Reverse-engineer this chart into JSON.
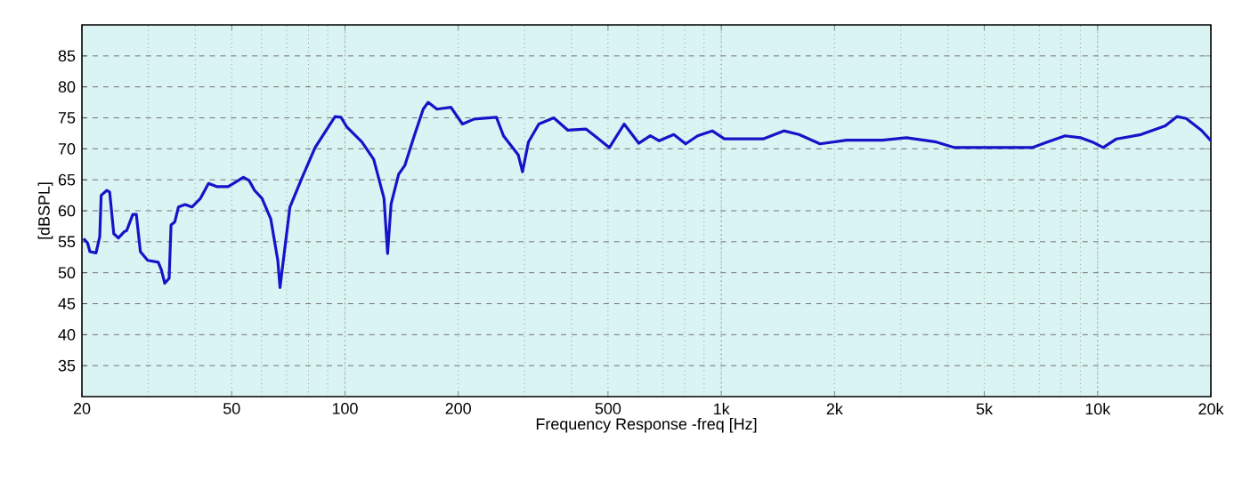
{
  "chart_data": {
    "type": "line",
    "xlabel": "Frequency Response -freq [Hz]",
    "ylabel": "[dBSPL]",
    "log": "x",
    "grid": true,
    "marker": "none",
    "line_style": "solid",
    "xlim": [
      20,
      20000
    ],
    "ylim": [
      30,
      90
    ],
    "xticks": [
      20,
      50,
      100,
      200,
      500,
      {
        "value": 1000,
        "label": "1k"
      },
      {
        "value": 2000,
        "label": "2k"
      },
      {
        "value": 5000,
        "label": "5k"
      },
      {
        "value": 10000,
        "label": "10k"
      },
      {
        "value": 20000,
        "label": "20k"
      }
    ],
    "yticks": [
      35,
      40,
      45,
      50,
      55,
      60,
      65,
      70,
      75,
      80,
      85
    ],
    "series": [
      {
        "color": "#1414c8",
        "x": [
          20.2,
          20.7,
          21.0,
          21.8,
          22.3,
          22.5,
          23.3,
          23.7,
          24.3,
          25,
          25.9,
          26.3,
          27.3,
          27.9,
          28.6,
          29.9,
          31.9,
          32.5,
          33.2,
          34.1,
          34.5,
          35.3,
          36.1,
          37.6,
          39.2,
          41.3,
          43.4,
          45.6,
          48.9,
          50.5,
          53.7,
          55.6,
          57.5,
          60.2,
          63.5,
          66.3,
          67.2,
          68.6,
          71.4,
          77,
          83.3,
          94.1,
          97.6,
          101.2,
          110.9,
          119.2,
          127,
          129.8,
          132.6,
          138.9,
          144.2,
          152.8,
          161.4,
          166.3,
          175.6,
          191.2,
          205.2,
          220.4,
          252.6,
          263.8,
          288.8,
          296.3,
          307.3,
          327.5,
          358.8,
          391.3,
          436.8,
          460.9,
          504.3,
          552,
          603.4,
          647.9,
          683.9,
          748,
          804,
          865,
          946,
          1019,
          1292,
          1466,
          1609,
          1829,
          2153,
          2682,
          3106,
          3728,
          4168,
          5191,
          6703,
          7213,
          8193,
          8997,
          9683,
          10348,
          11229,
          13036,
          15130,
          16270,
          17200,
          18870,
          20000
        ],
        "values": [
          55.5,
          54.8,
          53.4,
          53.2,
          55.8,
          62.5,
          63.3,
          63,
          56.3,
          55.6,
          56.6,
          56.8,
          59.4,
          59.4,
          53.4,
          52,
          51.7,
          50.5,
          48.3,
          49.1,
          57.7,
          58.2,
          60.6,
          61,
          60.6,
          62,
          64.4,
          63.9,
          63.9,
          64.4,
          65.4,
          64.9,
          63.3,
          62,
          58.7,
          52,
          47.6,
          52,
          60.6,
          65.4,
          70.2,
          75.2,
          75.1,
          73.5,
          71.1,
          68.3,
          62,
          53.1,
          61.1,
          65.9,
          67.3,
          72.1,
          76.4,
          77.5,
          76.4,
          76.7,
          74,
          74.8,
          75.1,
          72.1,
          69,
          66.3,
          71.1,
          74,
          75,
          73,
          73.2,
          72.1,
          70.2,
          74,
          70.9,
          72.1,
          71.3,
          72.3,
          70.8,
          72.1,
          72.9,
          71.6,
          71.6,
          72.9,
          72.3,
          70.8,
          71.4,
          71.4,
          71.8,
          71.1,
          70.2,
          70.2,
          70.2,
          70.9,
          72.1,
          71.8,
          71.1,
          70.2,
          71.6,
          72.3,
          73.7,
          75.2,
          74.9,
          73,
          71.3
        ]
      }
    ]
  }
}
